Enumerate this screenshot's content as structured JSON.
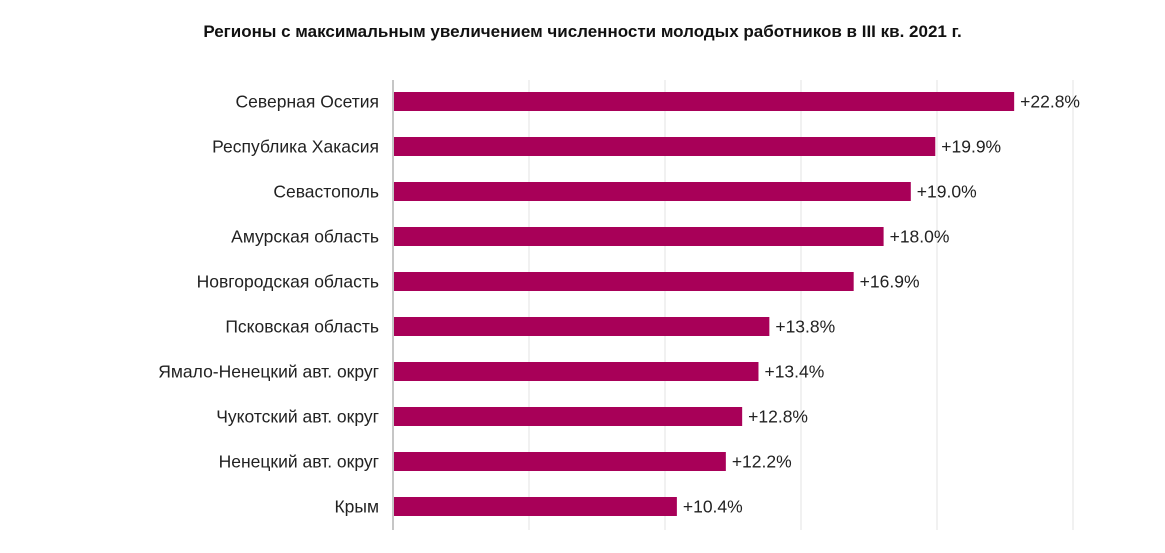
{
  "chart_data": {
    "type": "bar",
    "orientation": "horizontal",
    "title": "Регионы с максимальным увеличением численности молодых работников в III кв. 2021 г.",
    "categories": [
      "Северная Осетия",
      "Республика Хакасия",
      "Севастополь",
      "Амурская область",
      "Новгородская область",
      "Псковская область",
      "Ямало-Ненецкий авт. округ",
      "Чукотский авт. округ",
      "Ненецкий авт. округ",
      "Крым"
    ],
    "values": [
      22.8,
      19.9,
      19.0,
      18.0,
      16.9,
      13.8,
      13.4,
      12.8,
      12.2,
      10.4
    ],
    "value_labels": [
      "+22.8%",
      "+19.9%",
      "+19.0%",
      "+18.0%",
      "+16.9%",
      "+13.8%",
      "+13.4%",
      "+12.8%",
      "+12.2%",
      "+10.4%"
    ],
    "xlim": [
      0,
      25
    ],
    "grid": true,
    "colors": {
      "bar": "#a80058",
      "grid": "#e3e3e3",
      "axis": "#8c8c8c"
    }
  }
}
